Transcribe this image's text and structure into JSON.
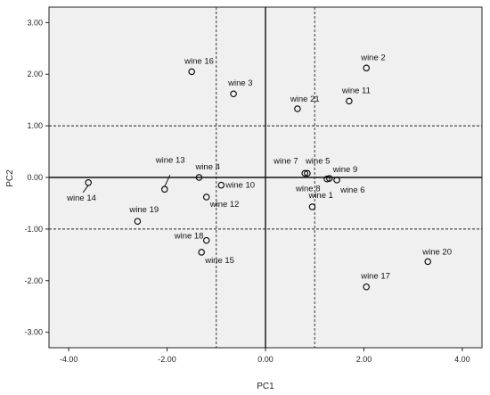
{
  "chart_data": {
    "type": "scatter",
    "title": "",
    "xlabel": "PC1",
    "ylabel": "PC2",
    "xlim": [
      -4.4,
      4.4
    ],
    "ylim": [
      -3.3,
      3.3
    ],
    "x_ticks": [
      "-4.00",
      "-2.00",
      "0.00",
      "2.00",
      "4.00"
    ],
    "y_ticks": [
      "3.00",
      "2.00",
      "1.00",
      "0.00",
      "-1.00",
      "-2.00",
      "-3.00"
    ],
    "solid_reference_lines": {
      "x": 0,
      "y": 0
    },
    "dashed_reference_lines": {
      "x": [
        -1,
        1
      ],
      "y": [
        1,
        -1
      ]
    },
    "grid": false,
    "legend": "none",
    "background_color": "#f0f0f0",
    "point_color": "#000000",
    "points": [
      {
        "label": "wine 1",
        "x": 0.95,
        "y": -0.57
      },
      {
        "label": "wine 2",
        "x": 2.05,
        "y": 2.12
      },
      {
        "label": "wine 3",
        "x": -0.65,
        "y": 1.62
      },
      {
        "label": "wine 4",
        "x": -1.35,
        "y": 0.0
      },
      {
        "label": "wine 5",
        "x": 0.85,
        "y": 0.08
      },
      {
        "label": "wine 6",
        "x": 1.45,
        "y": -0.05
      },
      {
        "label": "wine 7",
        "x": 0.8,
        "y": 0.08
      },
      {
        "label": "wine 8",
        "x": 1.25,
        "y": -0.03
      },
      {
        "label": "wine 9",
        "x": 1.3,
        "y": -0.02
      },
      {
        "label": "wine 10",
        "x": -0.9,
        "y": -0.15
      },
      {
        "label": "wine 11",
        "x": 1.7,
        "y": 1.48
      },
      {
        "label": "wine 12",
        "x": -1.2,
        "y": -0.38
      },
      {
        "label": "wine 13",
        "x": -2.05,
        "y": -0.23
      },
      {
        "label": "wine 14",
        "x": -3.6,
        "y": -0.1
      },
      {
        "label": "wine 15",
        "x": -1.3,
        "y": -1.45
      },
      {
        "label": "wine 16",
        "x": -1.5,
        "y": 2.05
      },
      {
        "label": "wine 18",
        "x": -1.2,
        "y": -1.22
      },
      {
        "label": "wine 17",
        "x": 2.05,
        "y": -2.12
      },
      {
        "label": "wine 19",
        "x": -2.6,
        "y": -0.85
      },
      {
        "label": "wine 20",
        "x": 3.3,
        "y": -1.63
      },
      {
        "label": "wine 21",
        "x": 0.65,
        "y": 1.33
      }
    ]
  }
}
